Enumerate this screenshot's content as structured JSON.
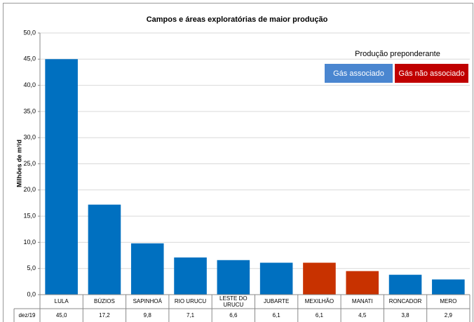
{
  "chart_data": {
    "type": "bar",
    "title": "Campos e áreas exploratórias de maior produção",
    "y_label": "Milhões de m³/d",
    "categories": [
      "LULA",
      "BÚZIOS",
      "SAPINHOÁ",
      "RIO URUCU",
      "LESTE DO URUCU",
      "JUBARTE",
      "MEXILHÃO",
      "MANATI",
      "RONCADOR",
      "MERO"
    ],
    "series": [
      {
        "name": "dez/19",
        "values": [
          45.0,
          17.2,
          9.8,
          7.1,
          6.6,
          6.1,
          6.1,
          4.5,
          3.8,
          2.9
        ],
        "value_labels": [
          "45,0",
          "17,2",
          "9,8",
          "7,1",
          "6,6",
          "6,1",
          "6,1",
          "4,5",
          "3,8",
          "2,9"
        ],
        "colors": [
          "#0070c0",
          "#0070c0",
          "#0070c0",
          "#0070c0",
          "#0070c0",
          "#0070c0",
          "#c83200",
          "#c83200",
          "#0070c0",
          "#0070c0"
        ]
      }
    ],
    "legend": {
      "title": "Produção preponderante",
      "items": [
        {
          "name": "Gás associado",
          "color": "#4a86d0"
        },
        {
          "name": "Gás não associado",
          "color": "#c00000"
        }
      ]
    },
    "ylim": [
      0,
      50
    ],
    "yticks": [
      {
        "value": 0,
        "label": "0,0"
      },
      {
        "value": 5,
        "label": "5,0"
      },
      {
        "value": 10,
        "label": "10,0"
      },
      {
        "value": 15,
        "label": "15,0"
      },
      {
        "value": 20,
        "label": "20,0"
      },
      {
        "value": 25,
        "label": "25,0"
      },
      {
        "value": 30,
        "label": "30,0"
      },
      {
        "value": 35,
        "label": "35,0"
      },
      {
        "value": 40,
        "label": "40,0"
      },
      {
        "value": 45,
        "label": "45,0"
      },
      {
        "value": 50,
        "label": "50,0"
      }
    ],
    "grid": true
  }
}
